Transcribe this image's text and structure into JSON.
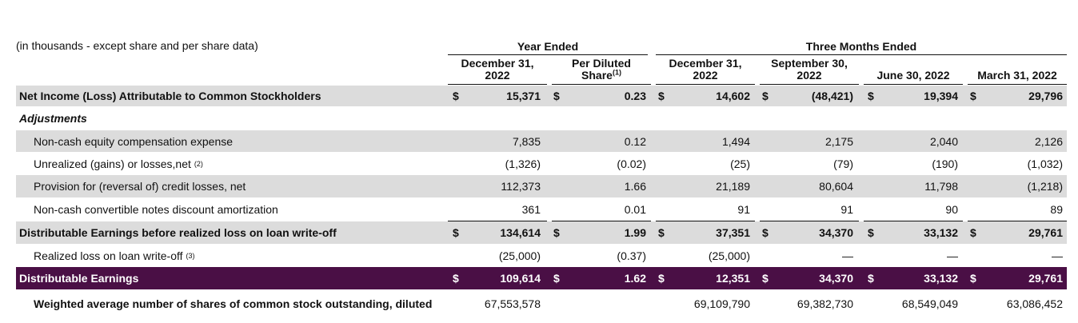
{
  "header": {
    "units_note": "(in thousands - except share and per share data)",
    "group_year": "Year Ended",
    "group_quarter": "Three Months Ended",
    "columns": [
      {
        "line1": "December 31,",
        "line2": "2022"
      },
      {
        "line1": "Per Diluted",
        "line2": "Share",
        "sup": "(1)"
      },
      {
        "line1": "December 31,",
        "line2": "2022"
      },
      {
        "line1": "September 30,",
        "line2": "2022"
      },
      {
        "line1": "June 30, 2022",
        "line2": ""
      },
      {
        "line1": "March 31, 2022",
        "line2": ""
      }
    ]
  },
  "rows": [
    {
      "label": "Net Income (Loss) Attributable to Common Stockholders",
      "sup": "",
      "style": "bold shade",
      "dollar": true,
      "values": [
        "15,371",
        "0.23",
        "14,602",
        "(48,421)",
        "19,394",
        "29,796"
      ]
    },
    {
      "label": "Adjustments",
      "sup": "",
      "style": "section",
      "dollar": false,
      "values": [
        "",
        "",
        "",
        "",
        "",
        ""
      ]
    },
    {
      "label": "Non-cash equity compensation expense",
      "sup": "",
      "style": "indent shade",
      "dollar": false,
      "values": [
        "7,835",
        "0.12",
        "1,494",
        "2,175",
        "2,040",
        "2,126"
      ]
    },
    {
      "label": "Unrealized (gains) or losses,net",
      "sup": "(2)",
      "style": "indent",
      "dollar": false,
      "values": [
        "(1,326)",
        "(0.02)",
        "(25)",
        "(79)",
        "(190)",
        "(1,032)"
      ]
    },
    {
      "label": "Provision for (reversal of) credit losses, net",
      "sup": "",
      "style": "indent shade",
      "dollar": false,
      "values": [
        "112,373",
        "1.66",
        "21,189",
        "80,604",
        "11,798",
        "(1,218)"
      ]
    },
    {
      "label": "Non-cash convertible notes discount amortization",
      "sup": "",
      "style": "indent",
      "dollar": false,
      "values": [
        "361",
        "0.01",
        "91",
        "91",
        "90",
        "89"
      ]
    },
    {
      "label": "Distributable Earnings before realized loss on loan write-off",
      "sup": "",
      "style": "bold shade",
      "dollar": true,
      "values": [
        "134,614",
        "1.99",
        "37,351",
        "34,370",
        "33,132",
        "29,761"
      ]
    },
    {
      "label": "Realized loss on loan write-off",
      "sup": "(3)",
      "style": "indent",
      "dollar": false,
      "values": [
        "(25,000)",
        "(0.37)",
        "(25,000)",
        "—",
        "—",
        "—"
      ]
    },
    {
      "label": "Distributable Earnings",
      "sup": "",
      "style": "bold purple",
      "dollar": true,
      "values": [
        "109,614",
        "1.62",
        "12,351",
        "34,370",
        "33,132",
        "29,761"
      ]
    },
    {
      "label": "Weighted average number of shares of common stock outstanding, diluted",
      "sup": "",
      "style": "bold indent",
      "dollar": false,
      "values": [
        "67,553,578",
        "",
        "69,109,790",
        "69,382,730",
        "68,549,049",
        "63,086,452"
      ]
    }
  ],
  "currency_symbol": "$"
}
